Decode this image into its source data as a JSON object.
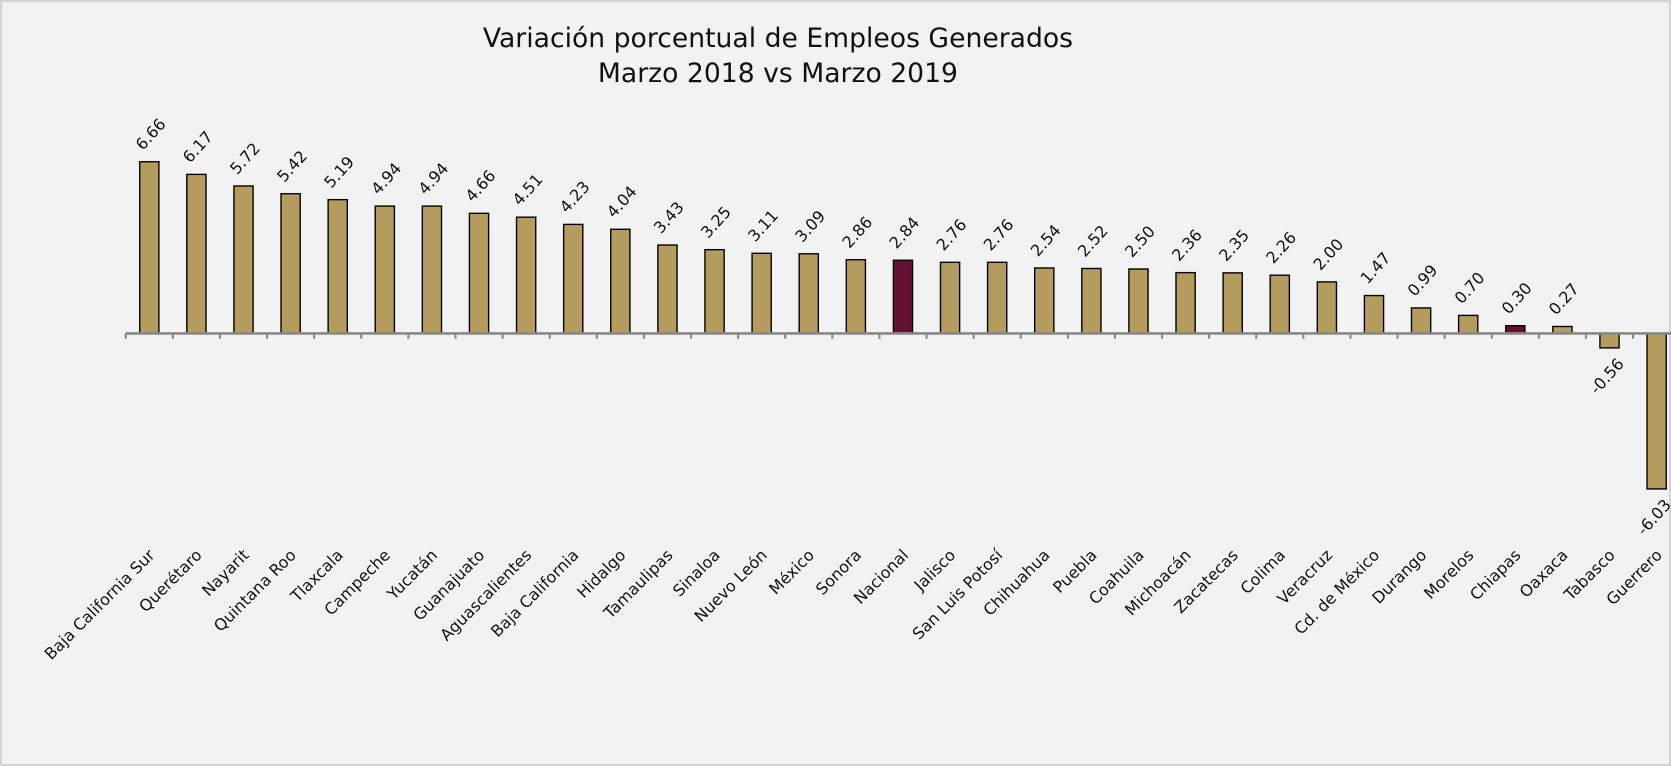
{
  "chart_data": {
    "type": "bar",
    "title": "Variación porcentual de Empleos Generados",
    "subtitle": "Marzo 2018 vs Marzo 2019",
    "categories": [
      "Baja California Sur",
      "Querétaro",
      "Nayarit",
      "Quintana Roo",
      "Tlaxcala",
      "Campeche",
      "Yucatán",
      "Guanajuato",
      "Aguascalientes",
      "Baja California",
      "Hidalgo",
      "Tamaulipas",
      "Sinaloa",
      "Nuevo León",
      "México",
      "Sonora",
      "Nacional",
      "Jalisco",
      "San Luis Potosí",
      "Chihuahua",
      "Puebla",
      "Coahuila",
      "Michoacán",
      "Zacatecas",
      "Colima",
      "Veracruz",
      "Cd. de México",
      "Durango",
      "Morelos",
      "Chiapas",
      "Oaxaca",
      "Tabasco",
      "Guerrero"
    ],
    "values": [
      6.66,
      6.17,
      5.72,
      5.42,
      5.19,
      4.94,
      4.94,
      4.66,
      4.51,
      4.23,
      4.04,
      3.43,
      3.25,
      3.11,
      3.09,
      2.86,
      2.84,
      2.76,
      2.76,
      2.54,
      2.52,
      2.5,
      2.36,
      2.35,
      2.26,
      2,
      1.47,
      0.99,
      0.7,
      0.3,
      0.27,
      -0.56,
      -6.03
    ],
    "value_labels": [
      "6.66",
      "6.17",
      "5.72",
      "5.42",
      "5.19",
      "4.94",
      "4.94",
      "4.66",
      "4.51",
      "4.23",
      "4.04",
      "3.43",
      "3.25",
      "3.11",
      "3.09",
      "2.86",
      "2.84",
      "2.76",
      "2.76",
      "2.54",
      "2.52",
      "2.50",
      "2.36",
      "2.35",
      "2.26",
      "2.00",
      "1.47",
      "0.99",
      "0.70",
      "0.30",
      "0.27",
      "-0.56",
      "-6.03"
    ],
    "colors": [
      "#b39c5e",
      "#b39c5e",
      "#b39c5e",
      "#b39c5e",
      "#b39c5e",
      "#b39c5e",
      "#b39c5e",
      "#b39c5e",
      "#b39c5e",
      "#b39c5e",
      "#b39c5e",
      "#b39c5e",
      "#b39c5e",
      "#b39c5e",
      "#b39c5e",
      "#b39c5e",
      "#621132",
      "#b39c5e",
      "#b39c5e",
      "#b39c5e",
      "#b39c5e",
      "#b39c5e",
      "#b39c5e",
      "#b39c5e",
      "#b39c5e",
      "#b39c5e",
      "#b39c5e",
      "#b39c5e",
      "#b39c5e",
      "#621132",
      "#b39c5e",
      "#b39c5e",
      "#b39c5e"
    ],
    "ylim": [
      -8,
      8
    ]
  }
}
